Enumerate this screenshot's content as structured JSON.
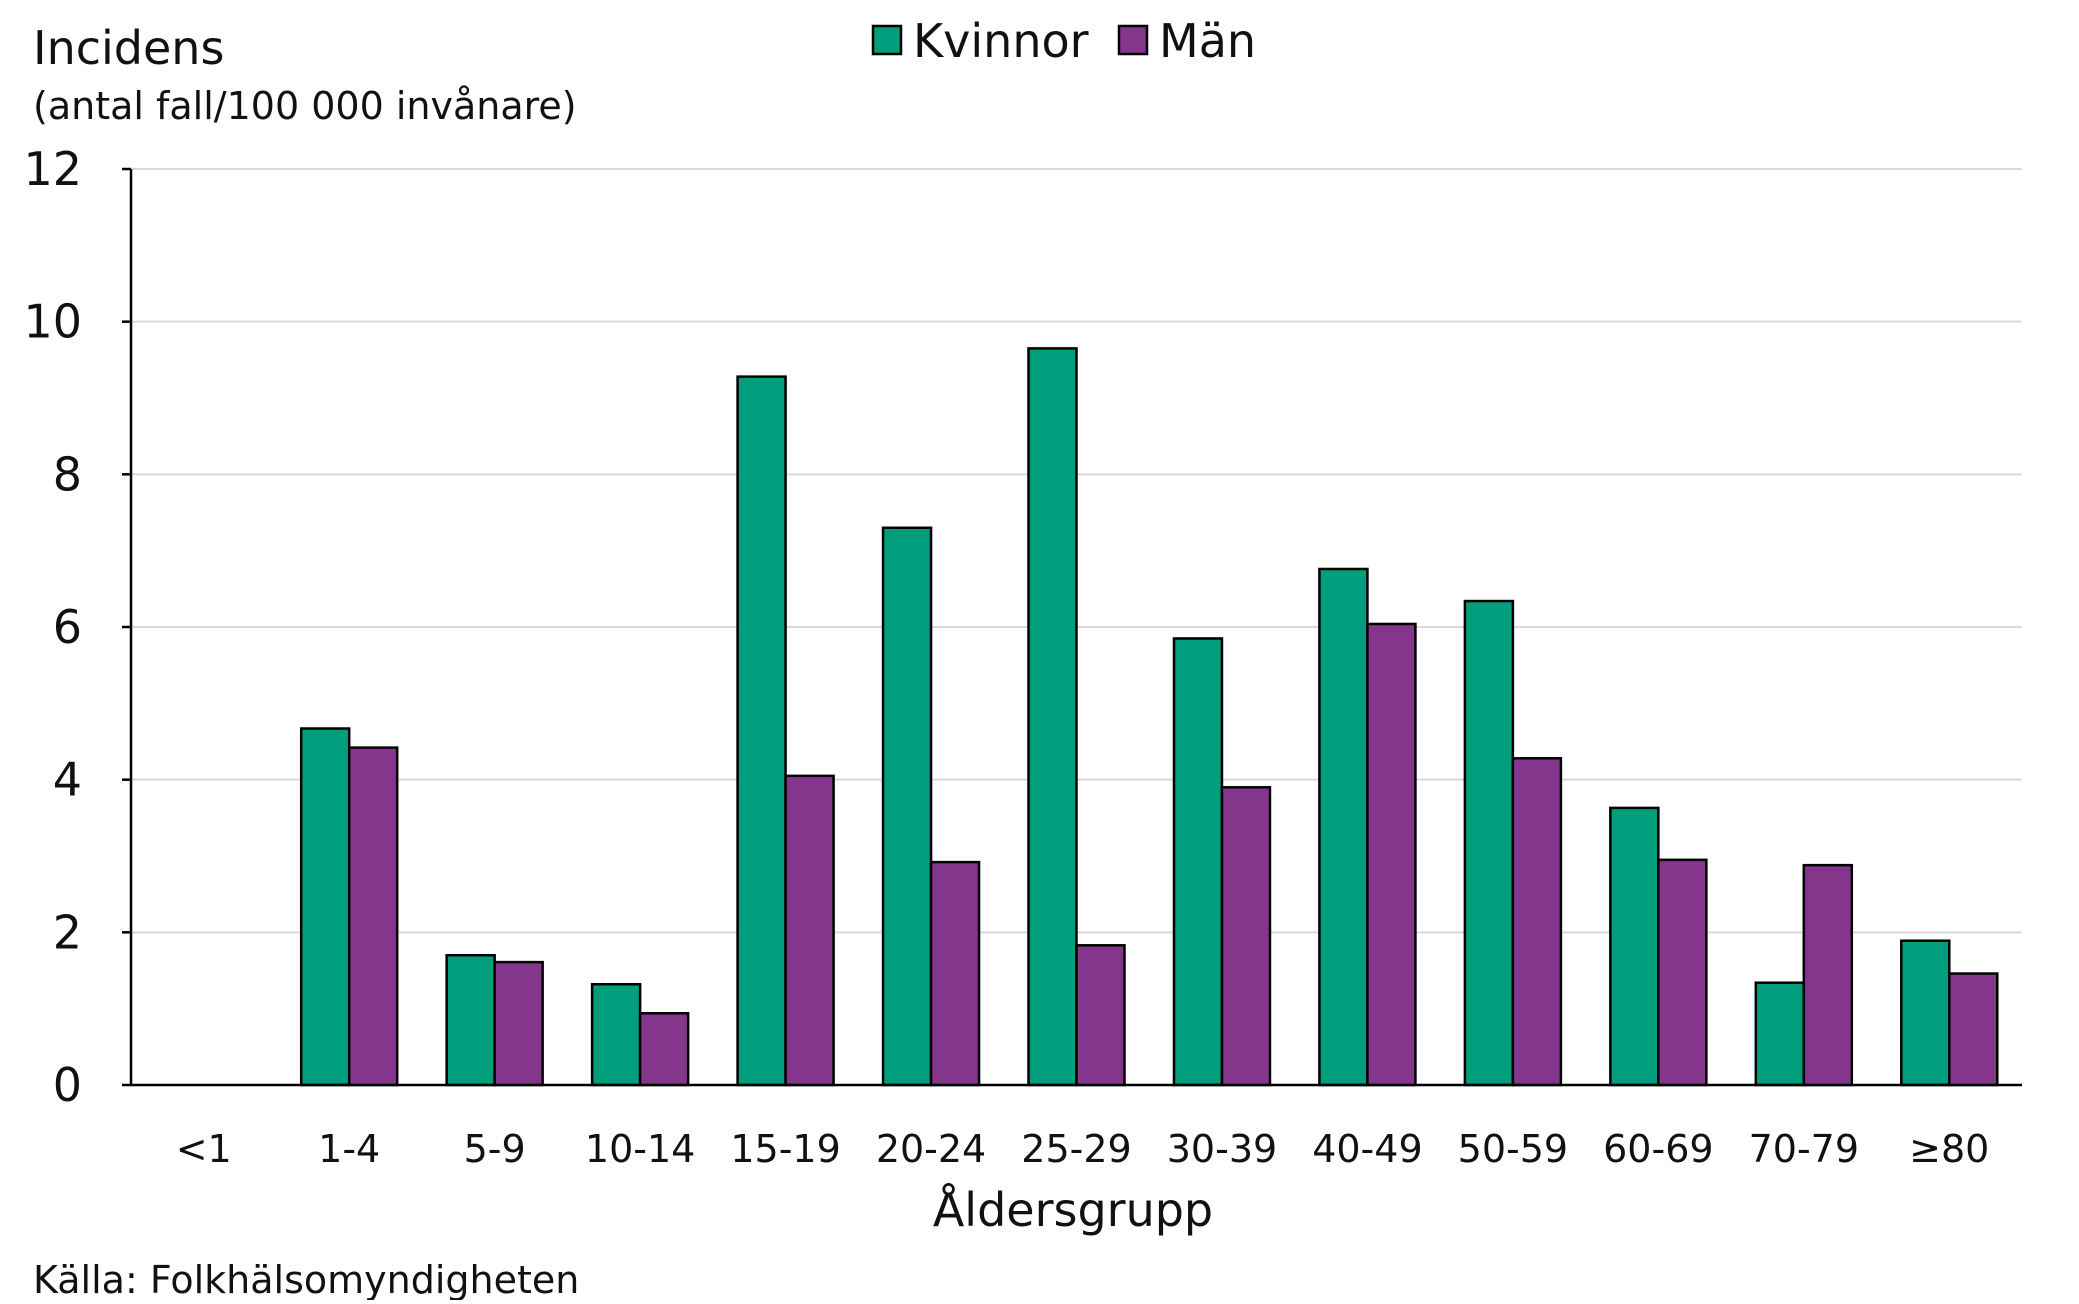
{
  "chart_data": {
    "type": "bar",
    "ylabel": "Incidens",
    "ylabel_sub": "(antal fall/100 000 invånare)",
    "xlabel": "Åldersgrupp",
    "source": "Källa: Folkhälsomyndigheten",
    "ylim": [
      0,
      12
    ],
    "yticks": [
      0,
      2,
      4,
      6,
      8,
      10,
      12
    ],
    "grid": true,
    "legend_position": "top-center",
    "categories": [
      "<1",
      "1-4",
      "5-9",
      "10-14",
      "15-19",
      "20-24",
      "25-29",
      "30-39",
      "40-49",
      "50-59",
      "60-69",
      "70-79",
      "≥80"
    ],
    "series": [
      {
        "name": "Kvinnor",
        "color": "#009e7c",
        "values": [
          0,
          4.67,
          1.7,
          1.32,
          9.28,
          7.3,
          9.65,
          5.85,
          6.76,
          6.34,
          3.63,
          1.34,
          1.89
        ]
      },
      {
        "name": "Män",
        "color": "#84368c",
        "values": [
          0,
          4.42,
          1.61,
          0.94,
          4.05,
          2.92,
          1.83,
          3.9,
          6.04,
          4.28,
          2.95,
          2.88,
          1.46
        ]
      }
    ]
  }
}
